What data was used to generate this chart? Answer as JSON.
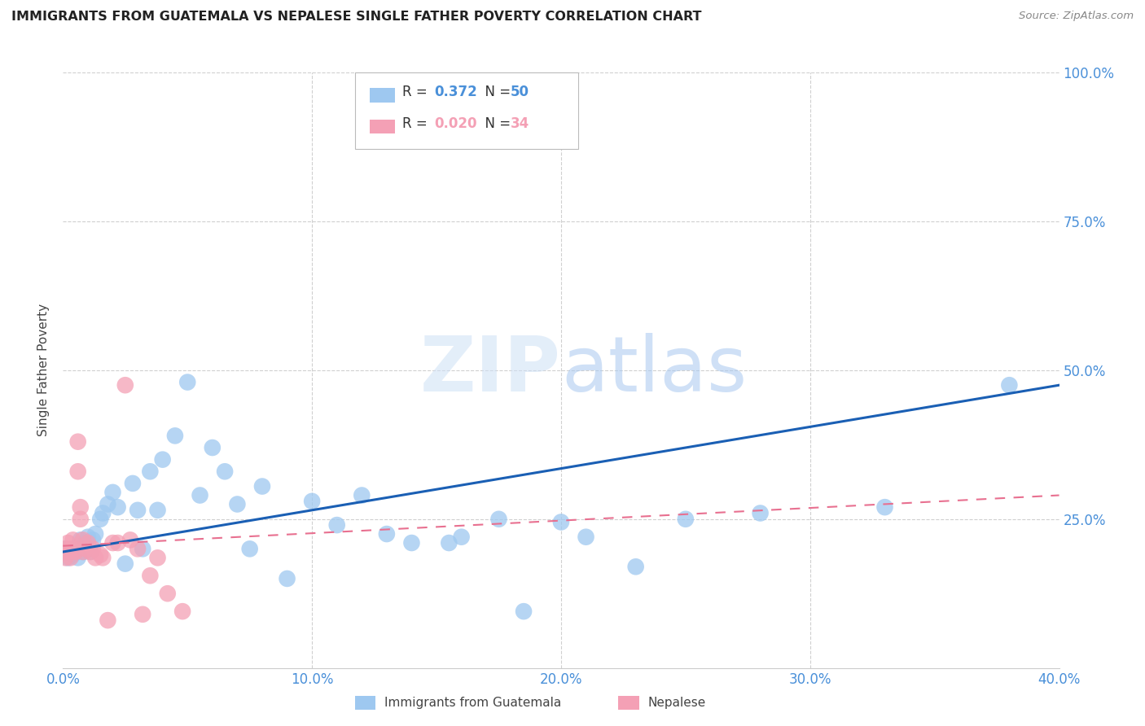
{
  "title": "IMMIGRANTS FROM GUATEMALA VS NEPALESE SINGLE FATHER POVERTY CORRELATION CHART",
  "source": "Source: ZipAtlas.com",
  "accent_color": "#4a90d9",
  "ylabel": "Single Father Poverty",
  "xlim": [
    0.0,
    0.4
  ],
  "ylim": [
    0.0,
    1.0
  ],
  "background_color": "#ffffff",
  "watermark_text": "ZIPatlas",
  "blue_color": "#9ec8f0",
  "pink_color": "#f4a0b5",
  "trendline_blue": "#1a5fb4",
  "trendline_pink": "#e87090",
  "R_blue": 0.372,
  "N_blue": 50,
  "R_pink": 0.02,
  "N_pink": 34,
  "blue_x": [
    0.001,
    0.002,
    0.003,
    0.004,
    0.005,
    0.006,
    0.007,
    0.008,
    0.009,
    0.01,
    0.011,
    0.012,
    0.013,
    0.015,
    0.016,
    0.018,
    0.02,
    0.022,
    0.025,
    0.028,
    0.03,
    0.032,
    0.035,
    0.038,
    0.04,
    0.045,
    0.05,
    0.055,
    0.06,
    0.065,
    0.07,
    0.075,
    0.08,
    0.09,
    0.1,
    0.11,
    0.12,
    0.13,
    0.14,
    0.155,
    0.16,
    0.175,
    0.185,
    0.2,
    0.21,
    0.23,
    0.25,
    0.28,
    0.33,
    0.38
  ],
  "blue_y": [
    0.2,
    0.185,
    0.195,
    0.19,
    0.2,
    0.185,
    0.215,
    0.195,
    0.21,
    0.22,
    0.195,
    0.215,
    0.225,
    0.25,
    0.26,
    0.275,
    0.295,
    0.27,
    0.175,
    0.31,
    0.265,
    0.2,
    0.33,
    0.265,
    0.35,
    0.39,
    0.48,
    0.29,
    0.37,
    0.33,
    0.275,
    0.2,
    0.305,
    0.15,
    0.28,
    0.24,
    0.29,
    0.225,
    0.21,
    0.21,
    0.22,
    0.25,
    0.095,
    0.245,
    0.22,
    0.17,
    0.25,
    0.26,
    0.27,
    0.475
  ],
  "pink_x": [
    0.001,
    0.001,
    0.001,
    0.002,
    0.002,
    0.003,
    0.003,
    0.004,
    0.005,
    0.005,
    0.006,
    0.006,
    0.007,
    0.007,
    0.008,
    0.008,
    0.009,
    0.01,
    0.011,
    0.012,
    0.013,
    0.015,
    0.016,
    0.018,
    0.02,
    0.022,
    0.025,
    0.027,
    0.03,
    0.032,
    0.035,
    0.038,
    0.042,
    0.048
  ],
  "pink_y": [
    0.2,
    0.195,
    0.185,
    0.21,
    0.195,
    0.2,
    0.185,
    0.215,
    0.2,
    0.195,
    0.38,
    0.33,
    0.27,
    0.25,
    0.215,
    0.195,
    0.2,
    0.21,
    0.195,
    0.2,
    0.185,
    0.19,
    0.185,
    0.08,
    0.21,
    0.21,
    0.475,
    0.215,
    0.2,
    0.09,
    0.155,
    0.185,
    0.125,
    0.095
  ],
  "grid_color": "#d0d0d0",
  "spine_color": "#cccccc"
}
